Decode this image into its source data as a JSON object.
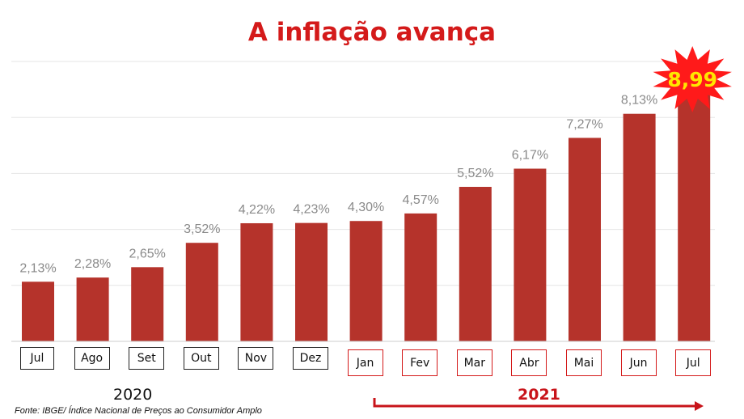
{
  "chart_data": {
    "type": "bar",
    "title": "A inflação avança",
    "categories": [
      "Jul",
      "Ago",
      "Set",
      "Out",
      "Nov",
      "Dez",
      "Jan",
      "Fev",
      "Mar",
      "Abr",
      "Mai",
      "Jun",
      "Jul"
    ],
    "values": [
      2.13,
      2.28,
      2.65,
      3.52,
      4.22,
      4.23,
      4.3,
      4.57,
      5.52,
      6.17,
      7.27,
      8.13,
      8.99
    ],
    "data_labels": [
      "2,13%",
      "2,28%",
      "2,65%",
      "3,52%",
      "4,22%",
      "4,23%",
      "4,30%",
      "4,57%",
      "5,52%",
      "6,17%",
      "7,27%",
      "8,13%",
      ""
    ],
    "highlight": {
      "index": 12,
      "label": "8,99",
      "burst_color": "#ff1a1a",
      "text_color": "#ffe600"
    },
    "years": [
      {
        "label": "2020",
        "from": 0,
        "to": 5
      },
      {
        "label": "2021",
        "from": 6,
        "to": 12
      }
    ],
    "xlabel": "",
    "ylabel": "",
    "ylim": [
      0,
      10
    ],
    "grid": true,
    "bar_color": "#b5332b",
    "label_color": "#8a8a8a",
    "accent_color": "#d41a1a"
  },
  "source": "Fonte: IBGE/ Índice Nacional de Preços ao Consumidor Amplo"
}
